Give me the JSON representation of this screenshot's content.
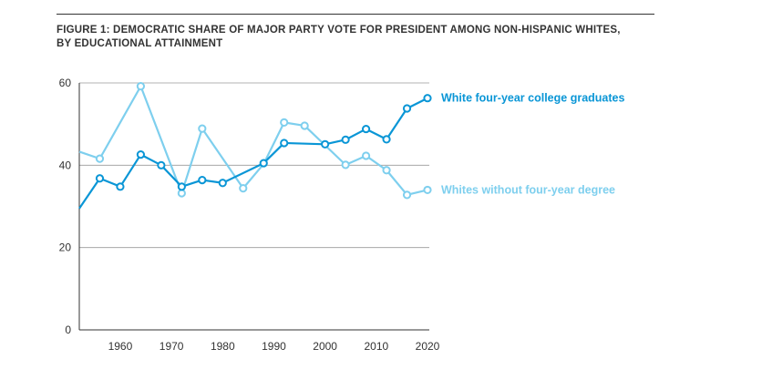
{
  "title_line1": "FIGURE 1: DEMOCRATIC SHARE OF MAJOR PARTY VOTE FOR PRESIDENT AMONG NON-HISPANIC WHITES,",
  "title_line2": "BY EDUCATIONAL ATTAINMENT",
  "chart_data": {
    "type": "line",
    "title": "FIGURE 1: DEMOCRATIC SHARE OF MAJOR PARTY VOTE FOR PRESIDENT AMONG NON-HISPANIC WHITES, BY EDUCATIONAL ATTAINMENT",
    "xlabel": "",
    "ylabel": "",
    "xlim": [
      1952,
      2020
    ],
    "ylim": [
      0,
      60
    ],
    "x_ticks": [
      1960,
      1970,
      1980,
      1990,
      2000,
      2010,
      2020
    ],
    "y_ticks": [
      0,
      20,
      40,
      60
    ],
    "grid": "horizontal",
    "legend": "direct labels at right end of lines",
    "series": [
      {
        "name": "White four-year college graduates",
        "color": "#0a96d6",
        "x": [
          1952,
          1956,
          1960,
          1964,
          1968,
          1972,
          1976,
          1980,
          1988,
          1992,
          2000,
          2004,
          2008,
          2012,
          2016,
          2020
        ],
        "values": [
          29.5,
          36.8,
          34.8,
          42.6,
          40.0,
          34.8,
          36.4,
          35.7,
          40.5,
          45.4,
          45.1,
          46.2,
          48.8,
          46.3,
          53.8,
          56.3
        ],
        "markers": [
          false,
          true,
          true,
          true,
          true,
          true,
          true,
          true,
          true,
          true,
          true,
          true,
          true,
          true,
          true,
          true
        ]
      },
      {
        "name": "Whites without four-year degree",
        "color": "#7ecfee",
        "x": [
          1952,
          1956,
          1964,
          1972,
          1976,
          1984,
          1988,
          1992,
          1996,
          2004,
          2008,
          2012,
          2016,
          2020
        ],
        "values": [
          43.3,
          41.6,
          59.2,
          33.2,
          48.9,
          34.4,
          40.3,
          50.4,
          49.6,
          40.1,
          42.3,
          38.8,
          32.8,
          34.0
        ],
        "markers": [
          false,
          true,
          true,
          true,
          true,
          true,
          false,
          true,
          true,
          true,
          true,
          true,
          true,
          true
        ]
      }
    ]
  }
}
